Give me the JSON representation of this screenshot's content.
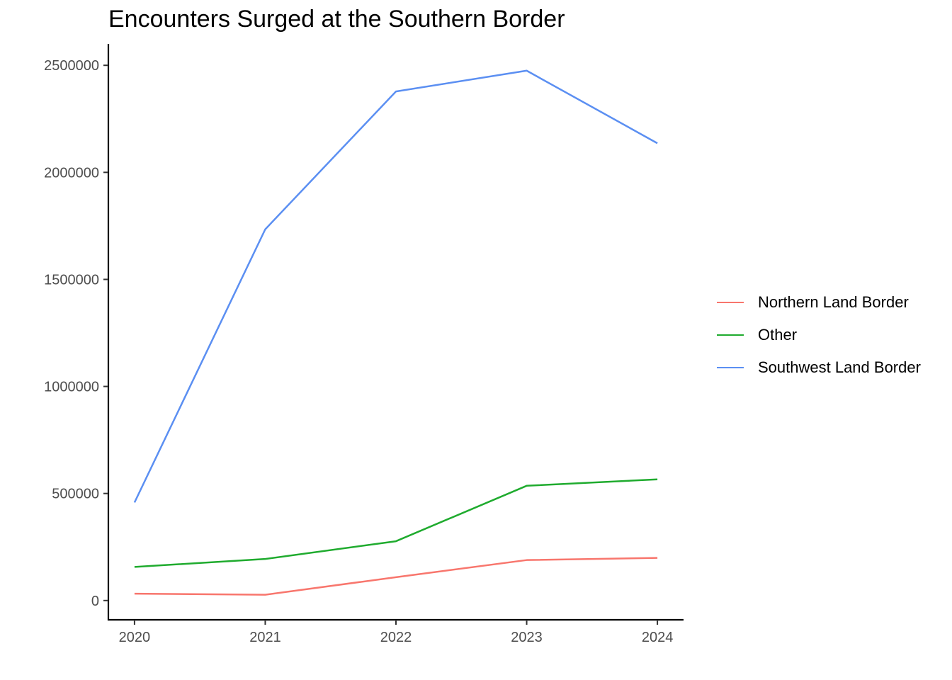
{
  "chart_data": {
    "type": "line",
    "title": "Encounters Surged at the Southern Border",
    "xlabel": "",
    "ylabel": "",
    "x": [
      2020,
      2021,
      2022,
      2023,
      2024
    ],
    "ylim": [
      -90000,
      2600000
    ],
    "y_ticks": [
      0,
      500000,
      1000000,
      1500000,
      2000000,
      2500000
    ],
    "grid": false,
    "legend_position": "right",
    "series": [
      {
        "name": "Northern Land Border",
        "color": "#f8766d",
        "values": [
          32000,
          27000,
          109000,
          189000,
          199000
        ]
      },
      {
        "name": "Other",
        "color": "#1fab2e",
        "values": [
          157000,
          194000,
          277000,
          536000,
          566000
        ]
      },
      {
        "name": "Southwest Land Border",
        "color": "#5b8ff2",
        "values": [
          458000,
          1734000,
          2378000,
          2475000,
          2136000
        ]
      }
    ]
  }
}
